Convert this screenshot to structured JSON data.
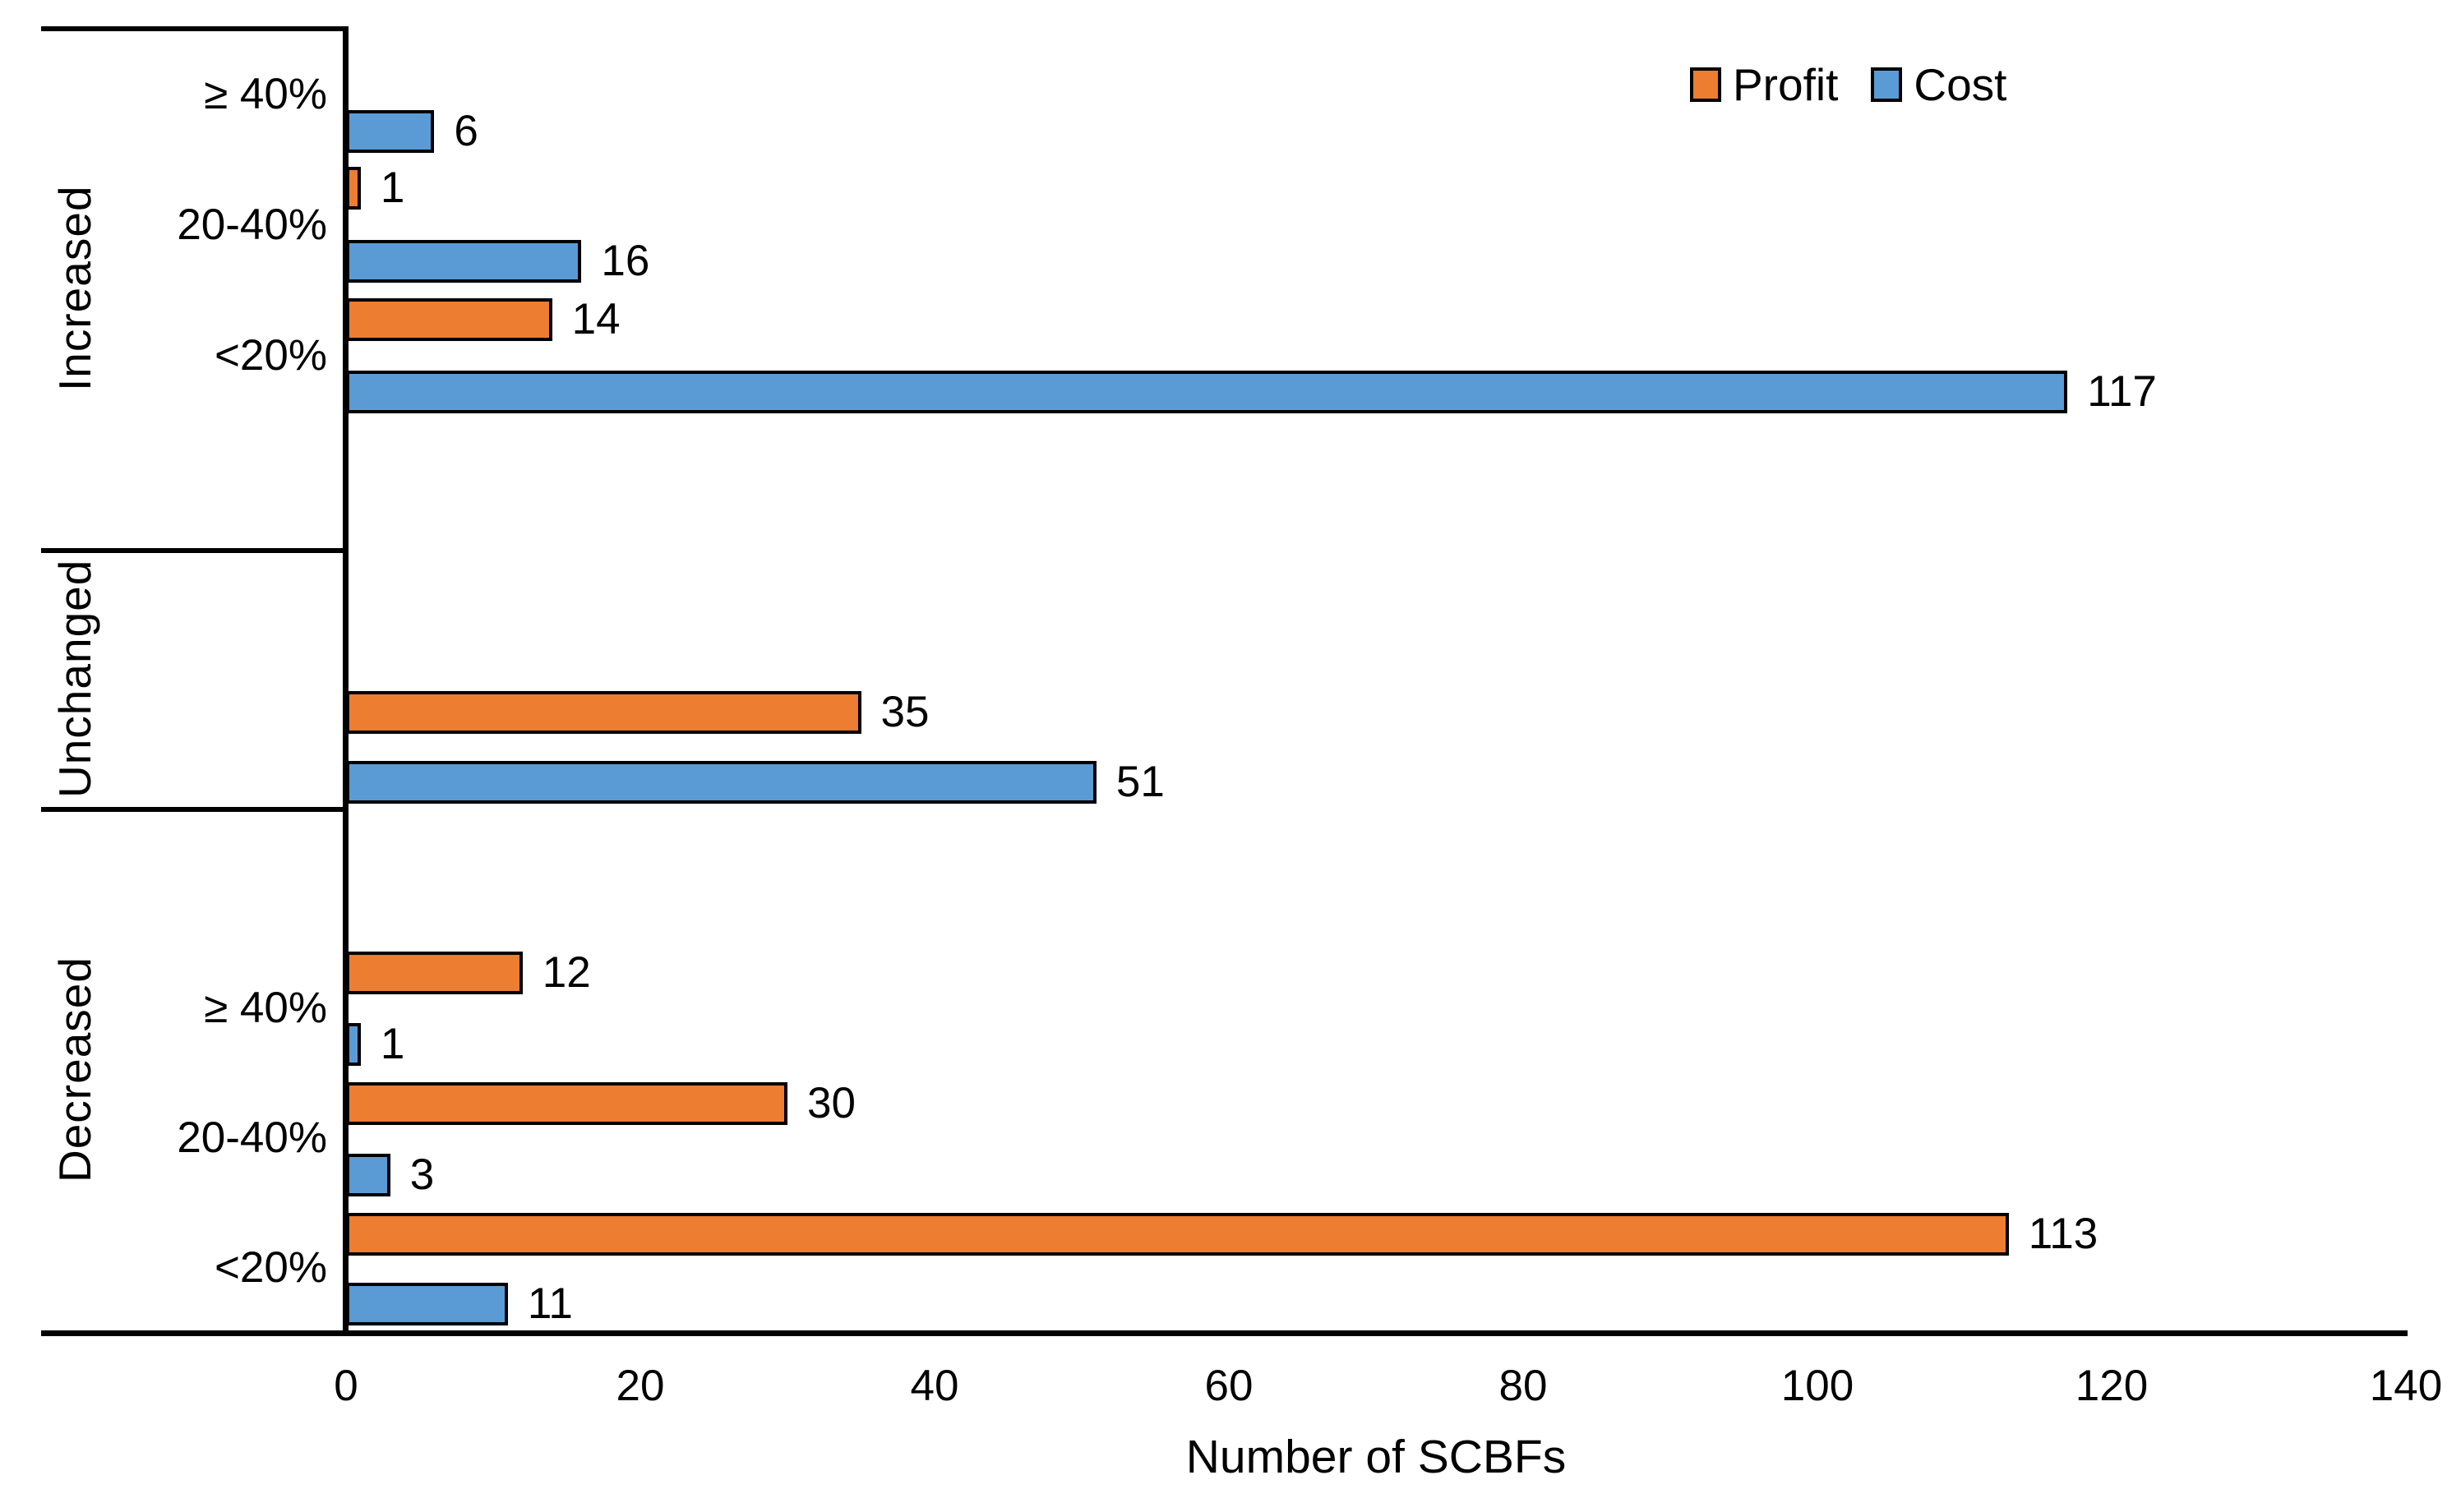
{
  "figure": {
    "legend": {
      "items": [
        {
          "label": "Profit",
          "color": "#ED7D31"
        },
        {
          "label": "Cost",
          "color": "#5B9BD5"
        }
      ]
    },
    "x_axis": {
      "title": "Number of SCBFs",
      "min": 0,
      "max": 140,
      "tick_labels": [
        "0",
        "20",
        "40",
        "60",
        "80",
        "100",
        "120",
        "140"
      ]
    },
    "sections": [
      {
        "label": "Increased"
      },
      {
        "label": "Unchanged"
      },
      {
        "label": "Decreased"
      }
    ],
    "sub_labels": [
      {
        "text": "≥ 40%"
      },
      {
        "text": "20-40%"
      },
      {
        "text": "<20%"
      },
      {
        "text": "≥ 40%"
      },
      {
        "text": "20-40%"
      },
      {
        "text": "<20%"
      }
    ],
    "bars": [
      {
        "section": "Increased",
        "category": "≥ 40%",
        "series": "Cost",
        "value": 6,
        "label": "6"
      },
      {
        "section": "Increased",
        "category": "≥ 40%",
        "series": "Profit",
        "value": 1,
        "label": "1"
      },
      {
        "section": "Increased",
        "category": "20-40%",
        "series": "Cost",
        "value": 16,
        "label": "16"
      },
      {
        "section": "Increased",
        "category": "20-40%",
        "series": "Profit",
        "value": 14,
        "label": "14"
      },
      {
        "section": "Increased",
        "category": "<20%",
        "series": "Cost",
        "value": 117,
        "label": "117"
      },
      {
        "section": "Unchanged",
        "category": "",
        "series": "Profit",
        "value": 35,
        "label": "35"
      },
      {
        "section": "Unchanged",
        "category": "",
        "series": "Cost",
        "value": 51,
        "label": "51"
      },
      {
        "section": "Decreased",
        "category": "≥ 40%",
        "series": "Profit",
        "value": 12,
        "label": "12"
      },
      {
        "section": "Decreased",
        "category": "≥ 40%",
        "series": "Cost",
        "value": 1,
        "label": "1"
      },
      {
        "section": "Decreased",
        "category": "20-40%",
        "series": "Profit",
        "value": 30,
        "label": "30"
      },
      {
        "section": "Decreased",
        "category": "20-40%",
        "series": "Cost",
        "value": 3,
        "label": "3"
      },
      {
        "section": "Decreased",
        "category": "<20%",
        "series": "Profit",
        "value": 113,
        "label": "113"
      },
      {
        "section": "Decreased",
        "category": "<20%",
        "series": "Cost",
        "value": 11,
        "label": "11"
      }
    ]
  },
  "chart_data": {
    "type": "bar",
    "orientation": "horizontal",
    "categories": [
      "Increased ≥ 40%",
      "Increased 20-40%",
      "Increased <20%",
      "Unchanged",
      "Decreased ≥ 40%",
      "Decreased 20-40%",
      "Decreased <20%"
    ],
    "series": [
      {
        "name": "Profit",
        "color": "#ED7D31",
        "values": [
          1,
          14,
          0,
          35,
          12,
          30,
          113
        ]
      },
      {
        "name": "Cost",
        "color": "#5B9BD5",
        "values": [
          6,
          16,
          117,
          51,
          1,
          3,
          11
        ]
      }
    ],
    "xlabel": "Number of SCBFs",
    "xlim": [
      0,
      140
    ],
    "xticks": [
      0,
      20,
      40,
      60,
      80,
      100,
      120,
      140
    ],
    "value_labels": true,
    "grid": false,
    "legend_position": "top-right",
    "notes": "Section labels Increased/Unchanged/Decreased are rotated 90° in boxed areas on the left; Increased <20% Profit has no visible bar (0)."
  }
}
